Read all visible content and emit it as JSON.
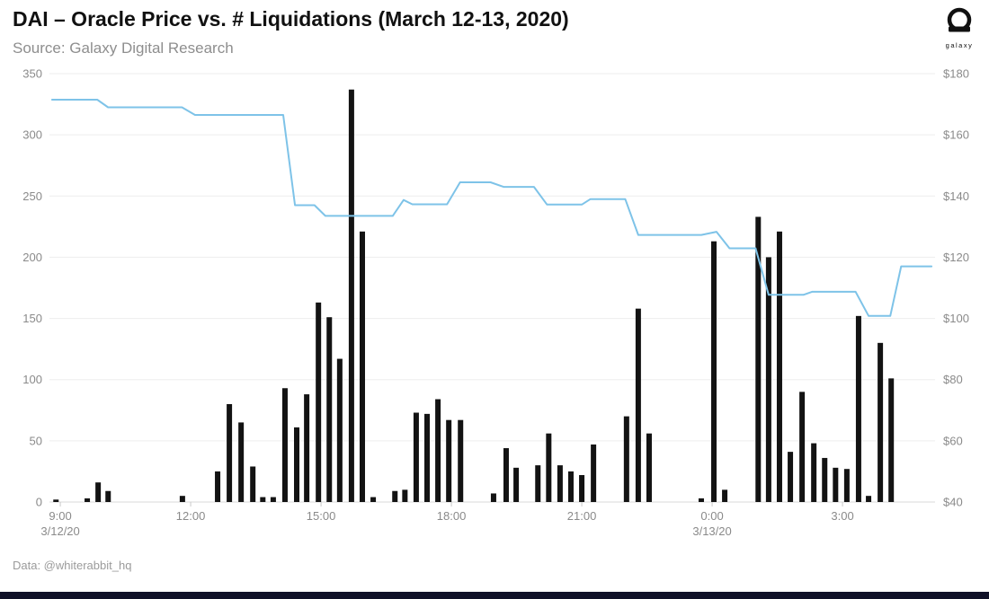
{
  "header": {
    "title": "DAI – Oracle Price vs. # Liquidations (March 12-13, 2020)",
    "source": "Source: Galaxy Digital Research"
  },
  "logo": {
    "label": "galaxy",
    "icon": "galaxy-helmet-icon"
  },
  "footer": {
    "credit": "Data: @whiterabbit_hq"
  },
  "colors": {
    "bar": "#131313",
    "line": "#7ec3e8",
    "grid": "#ededed",
    "axis_line": "#d8d8d8",
    "tick": "#c9c9c9",
    "axis_text": "#8a8a8a",
    "background": "#ffffff",
    "bottom_bar": "#101128"
  },
  "chart_data": {
    "type": "bar+line",
    "title": "DAI – Oracle Price vs. # Liquidations (March 12-13, 2020)",
    "legend": "none",
    "grid": "horizontal",
    "left_axis": {
      "series": "# Liquidations (bars)",
      "ticks": [
        0,
        50,
        100,
        150,
        200,
        250,
        300,
        350
      ],
      "range": [
        0,
        350
      ]
    },
    "right_axis": {
      "series": "Oracle Price (line)",
      "tick_labels": [
        "$40",
        "$60",
        "$80",
        "$100",
        "$120",
        "$140",
        "$160",
        "$180"
      ],
      "tick_values": [
        40,
        60,
        80,
        100,
        120,
        140,
        160,
        180
      ],
      "range": [
        40,
        180
      ]
    },
    "x_axis": {
      "unit": "hours since 9:00 3/12/20",
      "range_h": [
        -0.25,
        20.13
      ],
      "ticks": [
        {
          "h": 0,
          "label": "9:00",
          "date": "3/12/20"
        },
        {
          "h": 3,
          "label": "12:00",
          "date": ""
        },
        {
          "h": 6,
          "label": "15:00",
          "date": ""
        },
        {
          "h": 9,
          "label": "18:00",
          "date": ""
        },
        {
          "h": 12,
          "label": "21:00",
          "date": ""
        },
        {
          "h": 15,
          "label": "0:00",
          "date": "3/13/20"
        },
        {
          "h": 18,
          "label": "3:00",
          "date": ""
        }
      ]
    },
    "bars": [
      {
        "h": -0.1,
        "v": 2
      },
      {
        "h": 0.62,
        "v": 3
      },
      {
        "h": 0.87,
        "v": 16
      },
      {
        "h": 1.1,
        "v": 9
      },
      {
        "h": 2.81,
        "v": 5
      },
      {
        "h": 3.62,
        "v": 25
      },
      {
        "h": 3.89,
        "v": 80
      },
      {
        "h": 4.16,
        "v": 65
      },
      {
        "h": 4.43,
        "v": 29
      },
      {
        "h": 4.66,
        "v": 4
      },
      {
        "h": 4.9,
        "v": 4
      },
      {
        "h": 5.17,
        "v": 93
      },
      {
        "h": 5.44,
        "v": 61
      },
      {
        "h": 5.67,
        "v": 88
      },
      {
        "h": 5.94,
        "v": 163
      },
      {
        "h": 6.19,
        "v": 151
      },
      {
        "h": 6.43,
        "v": 117
      },
      {
        "h": 6.7,
        "v": 337
      },
      {
        "h": 6.95,
        "v": 221
      },
      {
        "h": 7.2,
        "v": 4
      },
      {
        "h": 7.7,
        "v": 9
      },
      {
        "h": 7.93,
        "v": 10
      },
      {
        "h": 8.19,
        "v": 73
      },
      {
        "h": 8.44,
        "v": 72
      },
      {
        "h": 8.69,
        "v": 84
      },
      {
        "h": 8.94,
        "v": 67
      },
      {
        "h": 9.21,
        "v": 67
      },
      {
        "h": 9.97,
        "v": 7
      },
      {
        "h": 10.26,
        "v": 44
      },
      {
        "h": 10.49,
        "v": 28
      },
      {
        "h": 10.99,
        "v": 30
      },
      {
        "h": 11.24,
        "v": 56
      },
      {
        "h": 11.5,
        "v": 30
      },
      {
        "h": 11.75,
        "v": 25
      },
      {
        "h": 12.0,
        "v": 22
      },
      {
        "h": 12.27,
        "v": 47
      },
      {
        "h": 13.03,
        "v": 70
      },
      {
        "h": 13.3,
        "v": 158
      },
      {
        "h": 13.55,
        "v": 56
      },
      {
        "h": 14.75,
        "v": 3
      },
      {
        "h": 15.04,
        "v": 213
      },
      {
        "h": 15.29,
        "v": 10
      },
      {
        "h": 16.06,
        "v": 233
      },
      {
        "h": 16.3,
        "v": 200
      },
      {
        "h": 16.55,
        "v": 221
      },
      {
        "h": 16.8,
        "v": 41
      },
      {
        "h": 17.07,
        "v": 90
      },
      {
        "h": 17.34,
        "v": 48
      },
      {
        "h": 17.59,
        "v": 36
      },
      {
        "h": 17.84,
        "v": 28
      },
      {
        "h": 18.1,
        "v": 27
      },
      {
        "h": 18.37,
        "v": 152
      },
      {
        "h": 18.6,
        "v": 5
      },
      {
        "h": 18.87,
        "v": 130
      },
      {
        "h": 19.12,
        "v": 101
      }
    ],
    "line": [
      {
        "h": -0.19,
        "p": 171.5
      },
      {
        "h": 0.85,
        "p": 171.5
      },
      {
        "h": 1.1,
        "p": 169.0
      },
      {
        "h": 2.8,
        "p": 169.0
      },
      {
        "h": 3.1,
        "p": 166.5
      },
      {
        "h": 5.13,
        "p": 166.5
      },
      {
        "h": 5.4,
        "p": 137.0
      },
      {
        "h": 5.85,
        "p": 137.0
      },
      {
        "h": 6.1,
        "p": 133.5
      },
      {
        "h": 7.65,
        "p": 133.5
      },
      {
        "h": 7.9,
        "p": 138.7
      },
      {
        "h": 8.1,
        "p": 137.3
      },
      {
        "h": 8.9,
        "p": 137.3
      },
      {
        "h": 9.2,
        "p": 144.5
      },
      {
        "h": 9.9,
        "p": 144.5
      },
      {
        "h": 10.2,
        "p": 143.0
      },
      {
        "h": 10.9,
        "p": 143.0
      },
      {
        "h": 11.2,
        "p": 137.2
      },
      {
        "h": 12.0,
        "p": 137.2
      },
      {
        "h": 12.2,
        "p": 139.0
      },
      {
        "h": 13.0,
        "p": 139.0
      },
      {
        "h": 13.3,
        "p": 127.3
      },
      {
        "h": 14.75,
        "p": 127.3
      },
      {
        "h": 15.1,
        "p": 128.3
      },
      {
        "h": 15.4,
        "p": 122.9
      },
      {
        "h": 16.0,
        "p": 122.9
      },
      {
        "h": 16.3,
        "p": 107.7
      },
      {
        "h": 17.1,
        "p": 107.7
      },
      {
        "h": 17.3,
        "p": 108.7
      },
      {
        "h": 18.3,
        "p": 108.7
      },
      {
        "h": 18.6,
        "p": 100.8
      },
      {
        "h": 19.1,
        "p": 100.8
      },
      {
        "h": 19.35,
        "p": 117.0
      },
      {
        "h": 20.05,
        "p": 117.0
      }
    ]
  }
}
